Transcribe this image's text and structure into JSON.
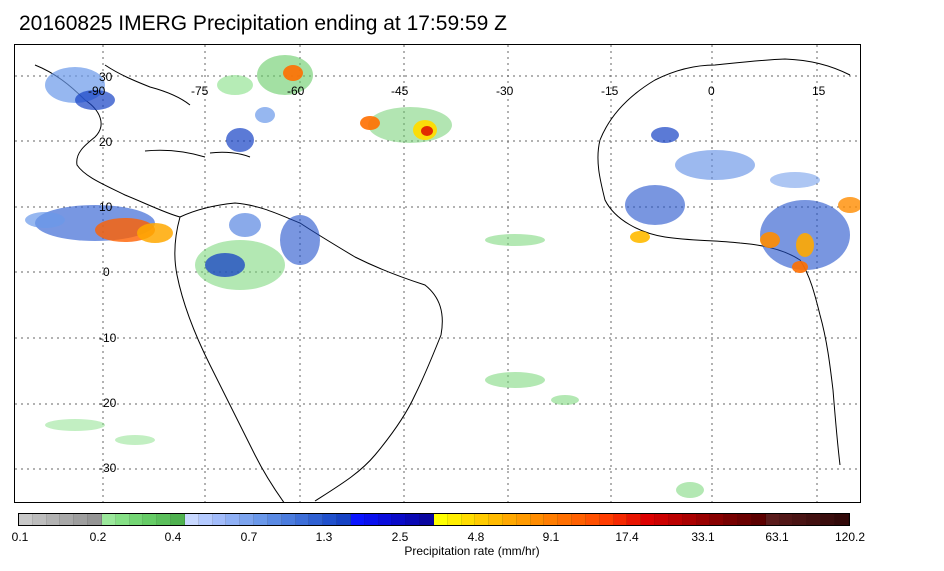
{
  "title": "20160825 IMERG Precipitation ending at 17:59:59 Z",
  "map": {
    "lon_labels": [
      "-90",
      "-75",
      "-60",
      "-45",
      "-30",
      "-15",
      "0",
      "15"
    ],
    "lat_labels": [
      "30",
      "20",
      "10",
      "0",
      "-10",
      "-20",
      "-30"
    ]
  },
  "colorbar": {
    "label": "Precipitation rate (mm/hr)",
    "tick_labels": [
      "0.1",
      "0.2",
      "0.4",
      "0.7",
      "1.3",
      "2.5",
      "4.8",
      "9.1",
      "17.4",
      "33.1",
      "63.1",
      "120.2"
    ],
    "colors": [
      "#c8c8c8",
      "#bdbdbd",
      "#b2b2b2",
      "#a8a8a8",
      "#9e9e9e",
      "#949494",
      "#9be89b",
      "#86e086",
      "#74d674",
      "#66cc66",
      "#5bbf5b",
      "#4fb14f",
      "#c8d8ff",
      "#b4caff",
      "#a2bcfb",
      "#8fb0f5",
      "#7ca4ef",
      "#6a98ea",
      "#5a8ae4",
      "#4b7cde",
      "#3d6ed8",
      "#2f60d2",
      "#2050cc",
      "#1642c4",
      "#0a14ff",
      "#0a10ee",
      "#0a0cdc",
      "#0a0ac8",
      "#0a08b4",
      "#0a06a0",
      "#ffff00",
      "#ffee00",
      "#ffdc00",
      "#ffcb00",
      "#ffba00",
      "#ffa800",
      "#ff9a00",
      "#ff8c00",
      "#ff7d00",
      "#ff6f00",
      "#ff6000",
      "#ff5000",
      "#ff3c00",
      "#f52800",
      "#e81400",
      "#dc0000",
      "#cc0000",
      "#bb0000",
      "#aa0000",
      "#990000",
      "#880000",
      "#770000",
      "#6a0000",
      "#5c0000",
      "#5a1b1b",
      "#521717",
      "#4a1414",
      "#421010",
      "#3a0d0d",
      "#320909"
    ]
  }
}
